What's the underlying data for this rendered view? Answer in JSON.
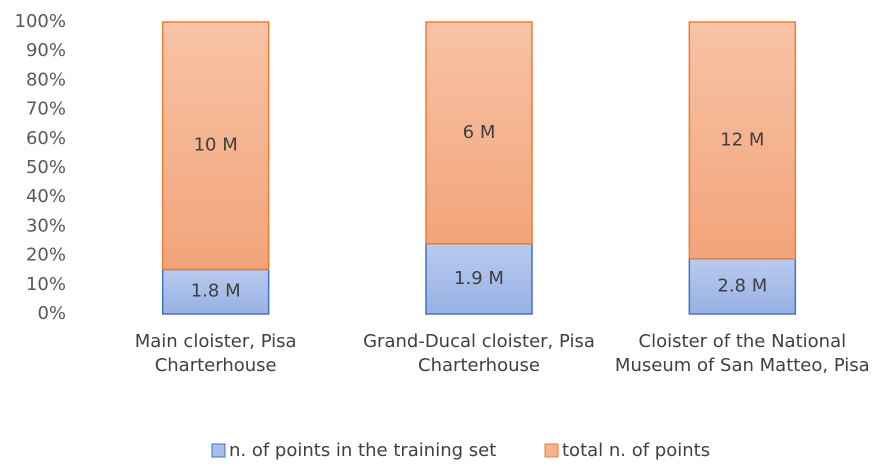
{
  "chart_data": {
    "type": "bar",
    "stacked": "percent",
    "categories": [
      "Main cloister, Pisa Charterhouse",
      "Grand-Ducal cloister, Pisa Charterhouse",
      "Cloister of the National Museum of San Matteo, Pisa"
    ],
    "series": [
      {
        "name": "n. of points in the training set",
        "color": "#a9bfea",
        "edge": "#4472c4",
        "values": [
          1800000,
          1900000,
          2800000
        ],
        "value_labels": [
          "1.8 M",
          "1.9 M",
          "2.8 M"
        ]
      },
      {
        "name": "total n. of points",
        "color": "#f5b38f",
        "edge": "#ed7d31",
        "values": [
          10000000,
          6000000,
          12000000
        ],
        "value_labels": [
          "10 M",
          "6 M",
          "12 M"
        ]
      }
    ],
    "ylim": [
      0,
      100
    ],
    "yticks": [
      {
        "value": 0,
        "label": "0%"
      },
      {
        "value": 10,
        "label": "10%"
      },
      {
        "value": 20,
        "label": "20%"
      },
      {
        "value": 30,
        "label": "30%"
      },
      {
        "value": 40,
        "label": "40%"
      },
      {
        "value": 50,
        "label": "50%"
      },
      {
        "value": 60,
        "label": "60%"
      },
      {
        "value": 70,
        "label": "70%"
      },
      {
        "value": 80,
        "label": "80%"
      },
      {
        "value": 90,
        "label": "90%"
      },
      {
        "value": 100,
        "label": "100%"
      }
    ],
    "legend": "bottom"
  }
}
